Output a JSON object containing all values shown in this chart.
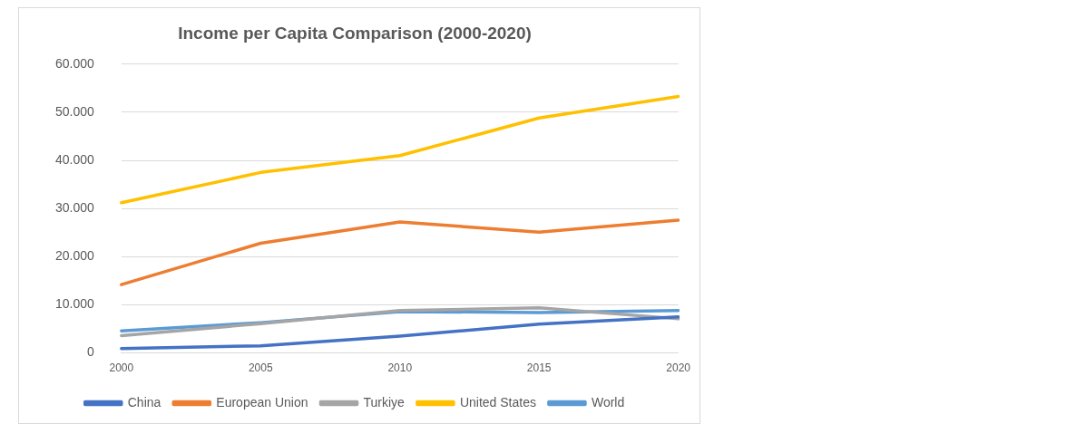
{
  "chart_data": {
    "type": "line",
    "title": "Income per Capita Comparison (2000-2020)",
    "categories": [
      "2000",
      "2005",
      "2010",
      "2015",
      "2020"
    ],
    "series": [
      {
        "name": "China",
        "color": "#4472c4",
        "values": [
          900,
          1500,
          3500,
          6000,
          7500
        ]
      },
      {
        "name": "European Union",
        "color": "#ed7d31",
        "values": [
          14200,
          22800,
          27200,
          25100,
          27600
        ]
      },
      {
        "name": "Turkiye",
        "color": "#a5a5a5",
        "values": [
          3600,
          6100,
          8800,
          9400,
          7100
        ]
      },
      {
        "name": "United States",
        "color": "#ffc000",
        "values": [
          31200,
          37500,
          41000,
          48800,
          53300
        ]
      },
      {
        "name": "World",
        "color": "#5b9bd5",
        "values": [
          4600,
          6300,
          8600,
          8400,
          8800
        ]
      }
    ],
    "ylim": [
      0,
      60000
    ],
    "yticks": [
      0,
      {
        "value": 10000,
        "label": "10.000"
      },
      {
        "value": 20000,
        "label": "20.000"
      },
      {
        "value": 30000,
        "label": "30.000"
      },
      {
        "value": 40000,
        "label": "40.000"
      },
      {
        "value": 50000,
        "label": "50.000"
      },
      {
        "value": 60000,
        "label": "60.000"
      }
    ],
    "grid": "y",
    "legend": "bottom",
    "marker": "none",
    "line_style": "solid"
  }
}
